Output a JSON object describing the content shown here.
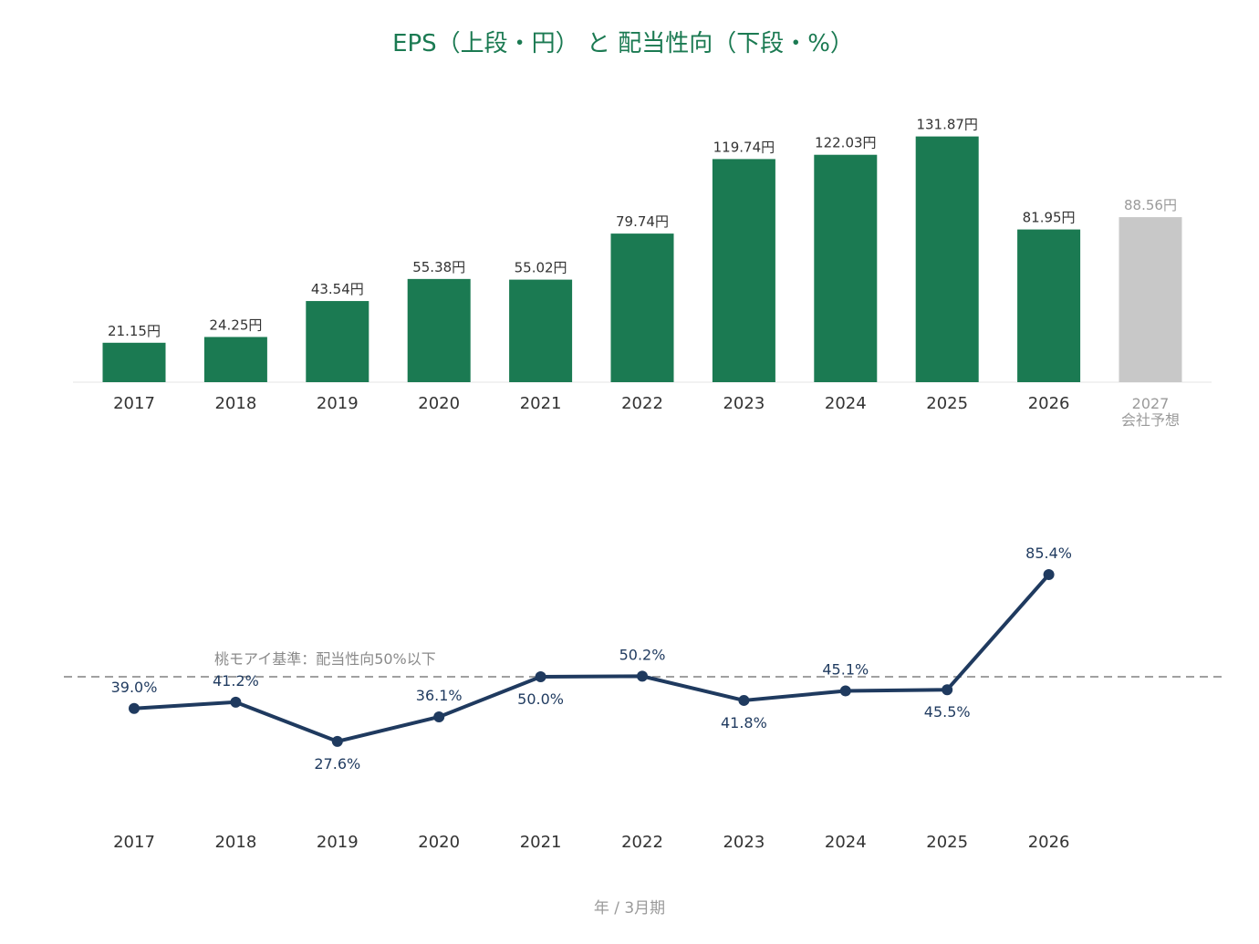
{
  "chart_data": [
    {
      "type": "bar",
      "title": "EPS（上段・円） と 配当性向（下段・%）",
      "categories": [
        "2017",
        "2018",
        "2019",
        "2020",
        "2021",
        "2022",
        "2023",
        "2024",
        "2025",
        "2026",
        "2027"
      ],
      "forecast_sublabel": "会社予想",
      "values": [
        21.15,
        24.25,
        43.54,
        55.38,
        55.02,
        79.74,
        119.74,
        122.03,
        131.87,
        81.95,
        88.56
      ],
      "labels": [
        "21.15円",
        "24.25円",
        "43.54円",
        "55.38円",
        "55.02円",
        "79.74円",
        "119.74円",
        "122.03円",
        "131.87円",
        "81.95円",
        "88.56円"
      ],
      "forecast_index": 10,
      "unit": "円",
      "colors": {
        "actual": "#1b7a52",
        "forecast": "#c8c8c8"
      },
      "ylim": [
        0,
        140
      ]
    },
    {
      "type": "line",
      "categories": [
        "2017",
        "2018",
        "2019",
        "2020",
        "2021",
        "2022",
        "2023",
        "2024",
        "2025",
        "2026"
      ],
      "values": [
        39.0,
        41.2,
        27.6,
        36.1,
        50.0,
        50.2,
        41.8,
        45.1,
        45.5,
        85.4
      ],
      "labels": [
        "39.0%",
        "41.2%",
        "27.6%",
        "36.1%",
        "50.0%",
        "50.2%",
        "41.8%",
        "45.1%",
        "45.5%",
        "85.4%"
      ],
      "label_above": [
        true,
        true,
        false,
        true,
        false,
        true,
        false,
        true,
        false,
        true
      ],
      "reference_line": {
        "value": 50,
        "label": "桃モアイ基準：配当性向50%以下"
      },
      "colors": {
        "line": "#1f3a5f",
        "reference": "#a0a0a0"
      },
      "ylim": [
        0,
        100
      ]
    }
  ],
  "footer": "年 / 3月期"
}
